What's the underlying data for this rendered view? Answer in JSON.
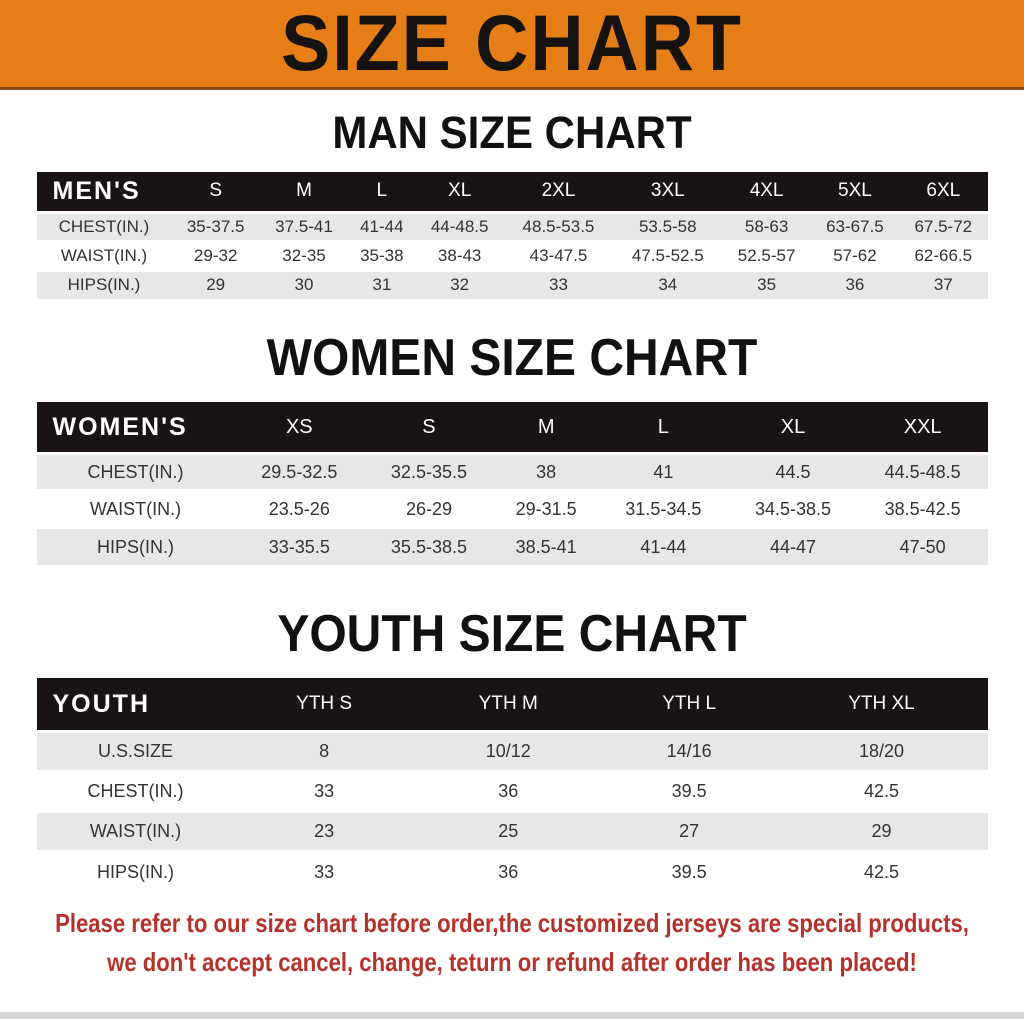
{
  "banner": {
    "title": "SIZE CHART",
    "bg_color": "#e67e17",
    "border_color": "#8a4a14"
  },
  "colors": {
    "header_bar": "#191413",
    "alt_row": "#e7e7e7",
    "disclaimer_red": "#b4322b"
  },
  "sections": [
    {
      "heading": "MAN SIZE CHART",
      "table": {
        "corner": "MEN'S",
        "columns": [
          "S",
          "M",
          "L",
          "XL",
          "2XL",
          "3XL",
          "4XL",
          "5XL",
          "6XL"
        ],
        "rows": [
          {
            "label": "CHEST(IN.)",
            "values": [
              "35-37.5",
              "37.5-41",
              "41-44",
              "44-48.5",
              "48.5-53.5",
              "53.5-58",
              "58-63",
              "63-67.5",
              "67.5-72"
            ]
          },
          {
            "label": "WAIST(IN.)",
            "values": [
              "29-32",
              "32-35",
              "35-38",
              "38-43",
              "43-47.5",
              "47.5-52.5",
              "52.5-57",
              "57-62",
              "62-66.5"
            ]
          },
          {
            "label": "HIPS(IN.)",
            "values": [
              "29",
              "30",
              "31",
              "32",
              "33",
              "34",
              "35",
              "36",
              "37"
            ]
          }
        ]
      }
    },
    {
      "heading": "WOMEN SIZE CHART",
      "table": {
        "corner": "WOMEN'S",
        "columns": [
          "XS",
          "S",
          "M",
          "L",
          "XL",
          "XXL"
        ],
        "rows": [
          {
            "label": "CHEST(IN.)",
            "values": [
              "29.5-32.5",
              "32.5-35.5",
              "38",
              "41",
              "44.5",
              "44.5-48.5"
            ]
          },
          {
            "label": "WAIST(IN.)",
            "values": [
              "23.5-26",
              "26-29",
              "29-31.5",
              "31.5-34.5",
              "34.5-38.5",
              "38.5-42.5"
            ]
          },
          {
            "label": "HIPS(IN.)",
            "values": [
              "33-35.5",
              "35.5-38.5",
              "38.5-41",
              "41-44",
              "44-47",
              "47-50"
            ]
          }
        ]
      }
    },
    {
      "heading": "YOUTH SIZE CHART",
      "table": {
        "corner": "YOUTH",
        "columns": [
          "YTH S",
          "YTH M",
          "YTH L",
          "YTH XL"
        ],
        "rows": [
          {
            "label": "U.S.SIZE",
            "values": [
              "8",
              "10/12",
              "14/16",
              "18/20"
            ]
          },
          {
            "label": "CHEST(IN.)",
            "values": [
              "33",
              "36",
              "39.5",
              "42.5"
            ]
          },
          {
            "label": "WAIST(IN.)",
            "values": [
              "23",
              "25",
              "27",
              "29"
            ]
          },
          {
            "label": "HIPS(IN.)",
            "values": [
              "33",
              "36",
              "39.5",
              "42.5"
            ]
          }
        ]
      }
    }
  ],
  "disclaimer": {
    "line1": "Please refer to our size chart before order,the customized jerseys are special products,",
    "line2": "we don't accept cancel, change, teturn or refund after order has been placed!",
    "color": "#b4322b"
  }
}
